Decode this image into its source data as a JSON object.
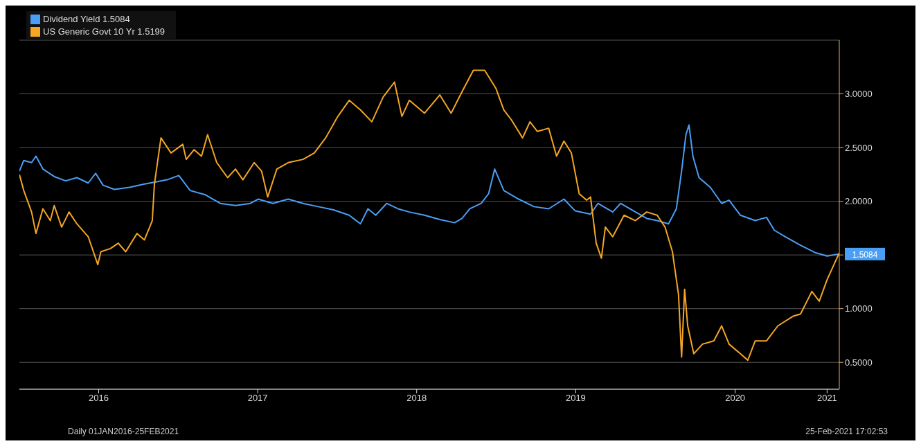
{
  "chart_data": {
    "type": "line",
    "xlim": [
      "2016-01-01",
      "2021-02-25"
    ],
    "xticks": [
      {
        "value": "2016-07-01",
        "label": "2016"
      },
      {
        "value": "2017-07-01",
        "label": "2017"
      },
      {
        "value": "2018-07-01",
        "label": "2018"
      },
      {
        "value": "2019-07-01",
        "label": "2019"
      },
      {
        "value": "2020-07-01",
        "label": "2020"
      },
      {
        "value": "2021-01-28",
        "label": "2021"
      }
    ],
    "ylim": [
      0.25,
      3.5
    ],
    "yticks": [
      {
        "value": 0.5,
        "label": "0.5000"
      },
      {
        "value": 1,
        "label": "1.0000"
      },
      {
        "value": 1.5,
        "label": null
      },
      {
        "value": 2,
        "label": "2.0000"
      },
      {
        "value": 2.5,
        "label": "2.5000"
      },
      {
        "value": 3,
        "label": "3.0000"
      }
    ],
    "grid": "y",
    "legend": "top left",
    "marker": "none",
    "line_style": "solid",
    "annotations": [
      {
        "text": "1.5084",
        "x": "2021-02-25",
        "y": 1.5084
      },
      "Daily 01JAN2016-25FEB2021",
      "25-Feb-2021 17:02:53"
    ],
    "series": [
      {
        "name": "Dividend Yield 1.5084",
        "color": "#4a9ff5",
        "x": [
          "2016-01-01",
          "2016-01-11",
          "2016-01-29",
          "2016-02-08",
          "2016-02-24",
          "2016-03-21",
          "2016-04-16",
          "2016-05-12",
          "2016-06-07",
          "2016-06-24",
          "2016-07-11",
          "2016-08-06",
          "2016-09-10",
          "2016-10-14",
          "2016-11-09",
          "2016-12-05",
          "2017-01-01",
          "2017-01-27",
          "2017-03-03",
          "2017-04-06",
          "2017-05-11",
          "2017-06-14",
          "2017-07-02",
          "2017-08-05",
          "2017-09-09",
          "2017-10-13",
          "2017-11-17",
          "2017-12-22",
          "2018-01-27",
          "2018-02-22",
          "2018-03-11",
          "2018-03-29",
          "2018-04-23",
          "2018-05-19",
          "2018-06-14",
          "2018-07-19",
          "2018-08-23",
          "2018-09-26",
          "2018-10-13",
          "2018-10-31",
          "2018-11-26",
          "2018-12-13",
          "2018-12-27",
          "2019-01-17",
          "2019-02-20",
          "2019-03-27",
          "2019-04-30",
          "2019-06-04",
          "2019-06-30",
          "2019-08-04",
          "2019-08-21",
          "2019-09-24",
          "2019-10-12",
          "2019-11-07",
          "2019-12-11",
          "2020-01-04",
          "2020-01-30",
          "2020-02-17",
          "2020-02-29",
          "2020-03-10",
          "2020-03-17",
          "2020-03-26",
          "2020-04-09",
          "2020-05-05",
          "2020-05-31",
          "2020-06-17",
          "2020-07-13",
          "2020-08-16",
          "2020-09-11",
          "2020-09-29",
          "2020-10-24",
          "2020-11-28",
          "2021-01-02",
          "2021-01-28",
          "2021-02-25"
        ],
        "values": [
          2.28,
          2.38,
          2.36,
          2.42,
          2.3,
          2.23,
          2.19,
          2.22,
          2.17,
          2.26,
          2.15,
          2.11,
          2.13,
          2.16,
          2.18,
          2.2,
          2.24,
          2.1,
          2.06,
          1.98,
          1.96,
          1.98,
          2.02,
          1.98,
          2.02,
          1.98,
          1.95,
          1.92,
          1.87,
          1.79,
          1.93,
          1.87,
          1.98,
          1.93,
          1.9,
          1.87,
          1.83,
          1.8,
          1.84,
          1.93,
          1.98,
          2.07,
          2.3,
          2.1,
          2.02,
          1.95,
          1.93,
          2.02,
          1.91,
          1.88,
          1.98,
          1.9,
          1.98,
          1.92,
          1.84,
          1.82,
          1.79,
          1.93,
          2.28,
          2.62,
          2.71,
          2.42,
          2.22,
          2.13,
          1.98,
          2.01,
          1.87,
          1.82,
          1.85,
          1.73,
          1.67,
          1.59,
          1.52,
          1.49,
          1.5084
        ]
      },
      {
        "name": "US Generic Govt 10 Yr 1.5199",
        "color": "#f5a623",
        "x": [
          "2016-01-01",
          "2016-01-11",
          "2016-01-29",
          "2016-02-08",
          "2016-02-24",
          "2016-03-12",
          "2016-03-21",
          "2016-04-07",
          "2016-04-24",
          "2016-05-12",
          "2016-06-07",
          "2016-06-29",
          "2016-07-06",
          "2016-07-28",
          "2016-08-15",
          "2016-09-01",
          "2016-09-27",
          "2016-10-14",
          "2016-11-01",
          "2016-11-06",
          "2016-11-14",
          "2016-11-21",
          "2016-12-14",
          "2017-01-10",
          "2017-01-18",
          "2017-02-05",
          "2017-02-22",
          "2017-03-08",
          "2017-03-29",
          "2017-04-23",
          "2017-05-11",
          "2017-05-28",
          "2017-06-23",
          "2017-07-10",
          "2017-07-24",
          "2017-08-14",
          "2017-09-09",
          "2017-10-13",
          "2017-11-08",
          "2017-12-04",
          "2018-01-01",
          "2018-01-27",
          "2018-02-22",
          "2018-03-20",
          "2018-04-15",
          "2018-05-11",
          "2018-05-28",
          "2018-06-14",
          "2018-07-19",
          "2018-08-23",
          "2018-09-18",
          "2018-10-13",
          "2018-11-08",
          "2018-12-04",
          "2018-12-30",
          "2019-01-17",
          "2019-02-03",
          "2019-03-01",
          "2019-03-18",
          "2019-04-04",
          "2019-04-30",
          "2019-05-18",
          "2019-06-04",
          "2019-06-21",
          "2019-07-09",
          "2019-07-26",
          "2019-08-04",
          "2019-08-17",
          "2019-08-29",
          "2019-09-07",
          "2019-09-24",
          "2019-10-20",
          "2019-11-15",
          "2019-12-11",
          "2020-01-04",
          "2020-01-22",
          "2020-02-08",
          "2020-02-22",
          "2020-02-29",
          "2020-03-07",
          "2020-03-14",
          "2020-03-28",
          "2020-04-17",
          "2020-05-13",
          "2020-05-31",
          "2020-06-17",
          "2020-07-13",
          "2020-07-30",
          "2020-08-16",
          "2020-09-11",
          "2020-10-07",
          "2020-11-11",
          "2020-11-28",
          "2020-12-24",
          "2021-01-10",
          "2021-01-28",
          "2021-02-25"
        ],
        "values": [
          2.25,
          2.1,
          1.9,
          1.7,
          1.93,
          1.82,
          1.96,
          1.76,
          1.9,
          1.79,
          1.67,
          1.41,
          1.53,
          1.56,
          1.61,
          1.53,
          1.7,
          1.64,
          1.82,
          2.16,
          2.39,
          2.59,
          2.45,
          2.53,
          2.39,
          2.48,
          2.42,
          2.62,
          2.36,
          2.22,
          2.3,
          2.2,
          2.36,
          2.28,
          2.04,
          2.3,
          2.36,
          2.39,
          2.45,
          2.59,
          2.79,
          2.94,
          2.85,
          2.74,
          2.97,
          3.11,
          2.79,
          2.94,
          2.82,
          2.99,
          2.82,
          3.02,
          3.22,
          3.22,
          3.05,
          2.85,
          2.76,
          2.59,
          2.74,
          2.65,
          2.68,
          2.42,
          2.56,
          2.45,
          2.07,
          2.01,
          2.04,
          1.61,
          1.47,
          1.76,
          1.67,
          1.87,
          1.82,
          1.9,
          1.87,
          1.76,
          1.53,
          1.13,
          0.55,
          1.18,
          0.84,
          0.58,
          0.67,
          0.7,
          0.84,
          0.67,
          0.58,
          0.52,
          0.7,
          0.7,
          0.84,
          0.93,
          0.95,
          1.16,
          1.07,
          1.27,
          1.5199
        ]
      }
    ]
  }
}
